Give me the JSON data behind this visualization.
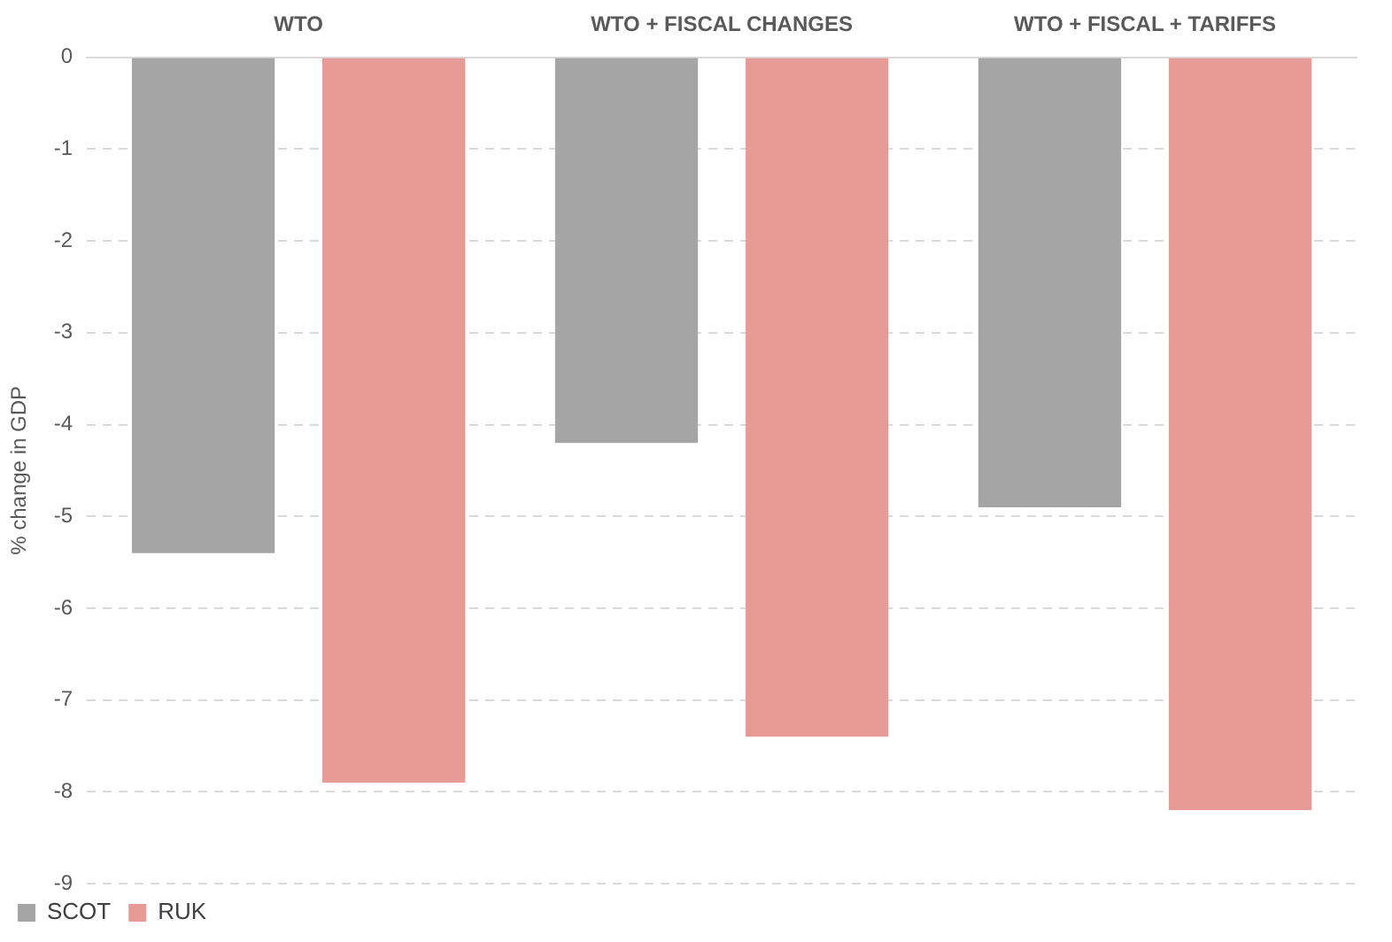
{
  "chart_data": {
    "type": "bar",
    "ylabel": "% change in GDP",
    "categories": [
      "WTO",
      "WTO + FISCAL CHANGES",
      "WTO + FISCAL + TARIFFS"
    ],
    "series": [
      {
        "name": "SCOT",
        "color": "#a5a5a5",
        "values": [
          -5.4,
          -4.2,
          -4.9
        ]
      },
      {
        "name": "RUK",
        "color": "#e69b96",
        "values": [
          -7.9,
          -7.4,
          -8.2
        ]
      }
    ],
    "ylim": [
      -9,
      0
    ],
    "yticks": [
      0,
      -1,
      -2,
      -3,
      -4,
      -5,
      -6,
      -7,
      -8,
      -9
    ],
    "grid": "y",
    "legend": "bottom left"
  }
}
